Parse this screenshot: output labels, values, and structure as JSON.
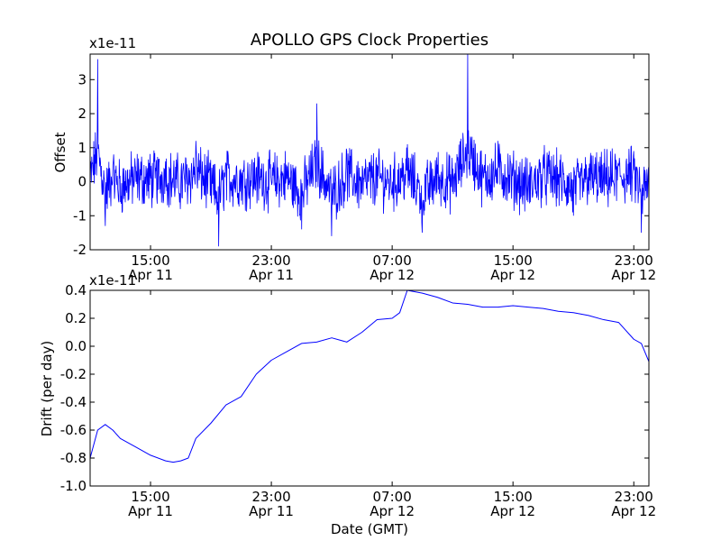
{
  "colors": {
    "series": "#0000ff",
    "axes": "#000000",
    "background": "#ffffff"
  },
  "chart_data": [
    {
      "type": "line",
      "title": "APOLLO GPS Clock Properties",
      "xlabel": "",
      "ylabel": "Offset",
      "multiplier": "x1e-11",
      "xlim": [
        "2011-04-11T11:00",
        "2011-04-13T00:00"
      ],
      "ylim": [
        -2,
        3.75
      ],
      "yticks": [
        {
          "value": -2,
          "label": "-2"
        },
        {
          "value": -1,
          "label": "-1"
        },
        {
          "value": 0,
          "label": "0"
        },
        {
          "value": 1,
          "label": "1"
        },
        {
          "value": 2,
          "label": "2"
        },
        {
          "value": 3,
          "label": "3"
        }
      ],
      "xticks": [
        {
          "value": "2011-04-11T15:00",
          "time": "15:00",
          "date": "Apr 11"
        },
        {
          "value": "2011-04-11T23:00",
          "time": "23:00",
          "date": "Apr 11"
        },
        {
          "value": "2011-04-12T07:00",
          "time": "07:00",
          "date": "Apr 12"
        },
        {
          "value": "2011-04-12T15:00",
          "time": "15:00",
          "date": "Apr 12"
        },
        {
          "value": "2011-04-12T23:00",
          "time": "23:00",
          "date": "Apr 12"
        }
      ],
      "grid": false,
      "series": [
        {
          "x": [
            "2011-04-11T11:00",
            "2011-04-11T11:30",
            "2011-04-11T12:00",
            "2011-04-11T12:30",
            "2011-04-11T13:00",
            "2011-04-11T14:00",
            "2011-04-11T15:00",
            "2011-04-11T16:00",
            "2011-04-11T17:00",
            "2011-04-11T18:00",
            "2011-04-11T19:00",
            "2011-04-11T19:30",
            "2011-04-11T20:00",
            "2011-04-11T21:00",
            "2011-04-11T22:00",
            "2011-04-11T23:00",
            "2011-04-12T00:00",
            "2011-04-12T01:00",
            "2011-04-12T02:00",
            "2011-04-12T03:00",
            "2011-04-12T04:00",
            "2011-04-12T05:00",
            "2011-04-12T06:00",
            "2011-04-12T07:00",
            "2011-04-12T08:00",
            "2011-04-12T09:00",
            "2011-04-12T10:00",
            "2011-04-12T11:00",
            "2011-04-12T12:00",
            "2011-04-12T13:00",
            "2011-04-12T14:00",
            "2011-04-12T15:00",
            "2011-04-12T16:00",
            "2011-04-12T17:00",
            "2011-04-12T18:00",
            "2011-04-12T19:00",
            "2011-04-12T20:00",
            "2011-04-12T21:00",
            "2011-04-12T22:00",
            "2011-04-12T23:00",
            "2011-04-12T23:30",
            "2011-04-13T00:00"
          ],
          "y": [
            0.3,
            3.6,
            -1.3,
            0.5,
            -0.6,
            0.4,
            0.2,
            0.6,
            -0.2,
            1.2,
            -0.4,
            -1.9,
            0.5,
            0.2,
            0.4,
            0.0,
            0.5,
            -1.4,
            2.3,
            -1.6,
            0.9,
            -0.3,
            0.5,
            -0.3,
            1.1,
            -1.5,
            0.5,
            -0.3,
            3.75,
            0.4,
            1.2,
            0.3,
            -0.6,
            0.7,
            0.2,
            -1.0,
            0.4,
            0.2,
            0.5,
            0.9,
            -1.5,
            -0.3
          ]
        }
      ]
    },
    {
      "type": "line",
      "title": "",
      "xlabel": "Date (GMT)",
      "ylabel": "Drift (per day)",
      "multiplier": "x1e-11",
      "xlim": [
        "2011-04-11T11:00",
        "2011-04-13T00:00"
      ],
      "ylim": [
        -1.0,
        0.4
      ],
      "yticks": [
        {
          "value": -1.0,
          "label": "-1.0"
        },
        {
          "value": -0.8,
          "label": "-0.8"
        },
        {
          "value": -0.6,
          "label": "-0.6"
        },
        {
          "value": -0.4,
          "label": "-0.4"
        },
        {
          "value": -0.2,
          "label": "-0.2"
        },
        {
          "value": 0.0,
          "label": "0.0"
        },
        {
          "value": 0.2,
          "label": "0.2"
        },
        {
          "value": 0.4,
          "label": "0.4"
        }
      ],
      "xticks": [
        {
          "value": "2011-04-11T15:00",
          "time": "15:00",
          "date": "Apr 11"
        },
        {
          "value": "2011-04-11T23:00",
          "time": "23:00",
          "date": "Apr 11"
        },
        {
          "value": "2011-04-12T07:00",
          "time": "07:00",
          "date": "Apr 12"
        },
        {
          "value": "2011-04-12T15:00",
          "time": "15:00",
          "date": "Apr 12"
        },
        {
          "value": "2011-04-12T23:00",
          "time": "23:00",
          "date": "Apr 12"
        }
      ],
      "grid": false,
      "series": [
        {
          "x": [
            "2011-04-11T11:00",
            "2011-04-11T11:30",
            "2011-04-11T12:00",
            "2011-04-11T12:30",
            "2011-04-11T13:00",
            "2011-04-11T14:00",
            "2011-04-11T15:00",
            "2011-04-11T16:00",
            "2011-04-11T16:30",
            "2011-04-11T17:00",
            "2011-04-11T17:30",
            "2011-04-11T18:00",
            "2011-04-11T19:00",
            "2011-04-11T20:00",
            "2011-04-11T21:00",
            "2011-04-11T22:00",
            "2011-04-11T23:00",
            "2011-04-12T00:00",
            "2011-04-12T01:00",
            "2011-04-12T02:00",
            "2011-04-12T03:00",
            "2011-04-12T04:00",
            "2011-04-12T05:00",
            "2011-04-12T06:00",
            "2011-04-12T07:00",
            "2011-04-12T07:30",
            "2011-04-12T08:00",
            "2011-04-12T09:00",
            "2011-04-12T10:00",
            "2011-04-12T11:00",
            "2011-04-12T12:00",
            "2011-04-12T13:00",
            "2011-04-12T14:00",
            "2011-04-12T15:00",
            "2011-04-12T16:00",
            "2011-04-12T17:00",
            "2011-04-12T18:00",
            "2011-04-12T19:00",
            "2011-04-12T20:00",
            "2011-04-12T21:00",
            "2011-04-12T22:00",
            "2011-04-12T23:00",
            "2011-04-12T23:30",
            "2011-04-13T00:00"
          ],
          "y": [
            -0.8,
            -0.6,
            -0.56,
            -0.6,
            -0.66,
            -0.72,
            -0.78,
            -0.82,
            -0.83,
            -0.82,
            -0.8,
            -0.66,
            -0.55,
            -0.42,
            -0.36,
            -0.2,
            -0.1,
            -0.04,
            0.02,
            0.03,
            0.06,
            0.03,
            0.1,
            0.19,
            0.2,
            0.24,
            0.4,
            0.38,
            0.35,
            0.31,
            0.3,
            0.28,
            0.28,
            0.29,
            0.28,
            0.27,
            0.25,
            0.24,
            0.22,
            0.19,
            0.17,
            0.05,
            0.02,
            -0.11
          ]
        }
      ]
    }
  ]
}
